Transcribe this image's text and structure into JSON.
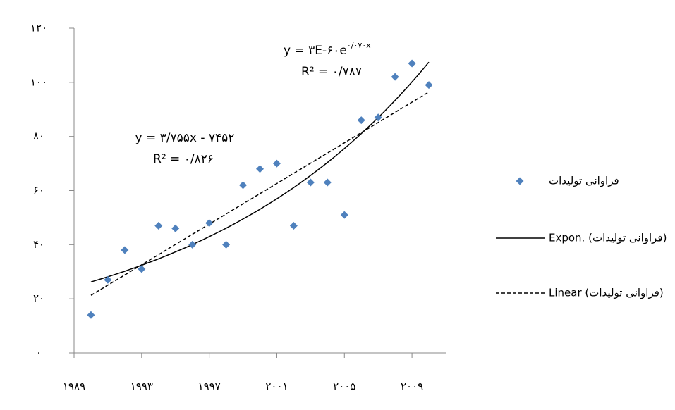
{
  "chart_data": {
    "type": "scatter",
    "series": [
      {
        "name": "فراوانی تولیدات",
        "color": "#4f81bd",
        "x": [
          1990,
          1991,
          1992,
          1993,
          1994,
          1995,
          1996,
          1997,
          1998,
          1999,
          2000,
          2001,
          2002,
          2003,
          2004,
          2005,
          2006,
          2007,
          2008,
          2009,
          2010
        ],
        "values": [
          14,
          27,
          38,
          31,
          47,
          46,
          40,
          48,
          40,
          62,
          68,
          70,
          47,
          63,
          63,
          51,
          86,
          87,
          102,
          107,
          99
        ]
      }
    ],
    "trendlines": [
      {
        "legend": "Expon. (فراوانی تولیدات)",
        "kind": "exponential",
        "equation": "y = ۳E-۶۰e",
        "exponent": "۰/۰۷۰x",
        "r2": "R² = ۰/۷۸۷"
      },
      {
        "legend": "Linear (فراوانی تولیدات)",
        "kind": "linear",
        "equation": "y = ۳/۷۵۵x - ۷۴۵۲",
        "r2": "R² = ۰/۸۲۶"
      }
    ],
    "xlim": [
      1989,
      2011
    ],
    "xticks": [
      {
        "value": 1989,
        "label": "۱۹۸۹"
      },
      {
        "value": 1993,
        "label": "۱۹۹۳"
      },
      {
        "value": 1997,
        "label": "۱۹۹۷"
      },
      {
        "value": 2001,
        "label": "۲۰۰۱"
      },
      {
        "value": 2005,
        "label": "۲۰۰۵"
      },
      {
        "value": 2009,
        "label": "۲۰۰۹"
      }
    ],
    "ylim": [
      0,
      120
    ],
    "yticks": [
      {
        "value": 0,
        "label": "۰"
      },
      {
        "value": 20,
        "label": "۲۰"
      },
      {
        "value": 40,
        "label": "۴۰"
      },
      {
        "value": 60,
        "label": "۶۰"
      },
      {
        "value": 80,
        "label": "۸۰"
      },
      {
        "value": 100,
        "label": "۱۰۰"
      },
      {
        "value": 120,
        "label": "۱۲۰"
      }
    ],
    "grid": false
  }
}
